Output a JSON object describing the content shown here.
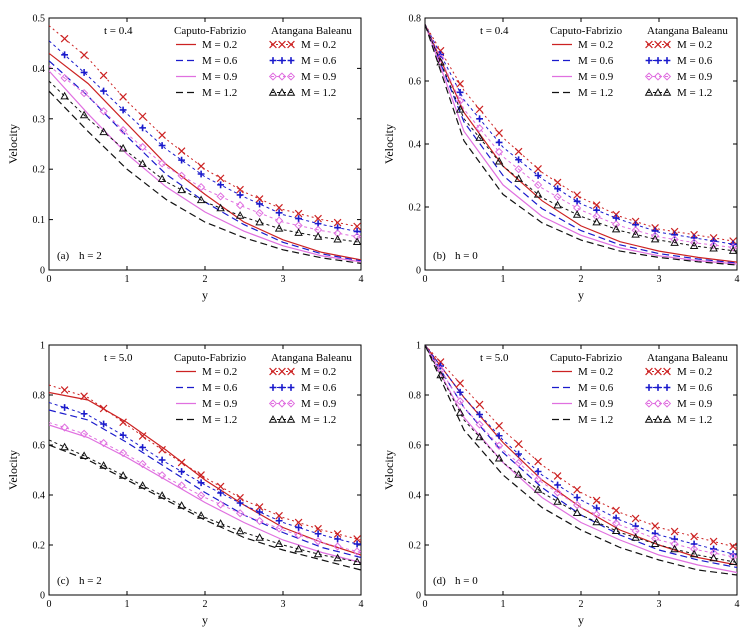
{
  "figure": {
    "ylabel": "Velocity",
    "xlabel": "y"
  },
  "legend_headers": {
    "cf": "Caputo-Fabrizio",
    "ab": "Atangana Baleanu"
  },
  "series_styles": [
    {
      "color": "#cc2222",
      "marker": "x",
      "cf_dash": "",
      "ab_dash": "2 3"
    },
    {
      "color": "#1a1acc",
      "marker": "+",
      "cf_dash": "7 4",
      "ab_dash": "3 3"
    },
    {
      "color": "#e070e0",
      "marker": "diamond",
      "cf_dash": "",
      "ab_dash": "3 3"
    },
    {
      "color": "#111111",
      "marker": "triangle",
      "cf_dash": "7 4",
      "ab_dash": "3 3"
    }
  ],
  "chart_data": [
    {
      "type": "line",
      "panel": "(a)",
      "title": "t = 0.4",
      "annotation_label": "(a)",
      "annotation_value": "h  =  2",
      "xlabel": "y",
      "ylabel": "Velocity",
      "xlim": [
        0,
        4
      ],
      "ylim": [
        0,
        0.5
      ],
      "xticks": [
        "0",
        "1",
        "2",
        "3",
        "4"
      ],
      "yticks": [
        "0",
        "0.1",
        "0.2",
        "0.3",
        "0.4",
        "0.5"
      ],
      "series": [
        {
          "name": "M = 0.2",
          "cf": {
            "x": [
              0,
              0.5,
              1,
              1.5,
              2,
              2.5,
              3,
              3.5,
              4
            ],
            "y": [
              0.43,
              0.37,
              0.29,
              0.21,
              0.15,
              0.095,
              0.06,
              0.035,
              0.02
            ]
          },
          "ab": {
            "x": [
              0,
              0.5,
              1,
              1.5,
              2,
              2.5,
              3,
              3.5,
              4
            ],
            "y": [
              0.485,
              0.42,
              0.335,
              0.26,
              0.2,
              0.155,
              0.12,
              0.1,
              0.085
            ]
          }
        },
        {
          "name": "M = 0.6",
          "cf": {
            "x": [
              0,
              0.5,
              1,
              1.5,
              2,
              2.5,
              3,
              3.5,
              4
            ],
            "y": [
              0.415,
              0.345,
              0.265,
              0.19,
              0.135,
              0.09,
              0.055,
              0.032,
              0.018
            ]
          },
          "ab": {
            "x": [
              0,
              0.5,
              1,
              1.5,
              2,
              2.5,
              3,
              3.5,
              4
            ],
            "y": [
              0.455,
              0.385,
              0.31,
              0.24,
              0.185,
              0.145,
              0.11,
              0.09,
              0.075
            ]
          }
        },
        {
          "name": "M = 0.9",
          "cf": {
            "x": [
              0,
              0.5,
              1,
              1.5,
              2,
              2.5,
              3,
              3.5,
              4
            ],
            "y": [
              0.395,
              0.31,
              0.23,
              0.165,
              0.115,
              0.077,
              0.048,
              0.028,
              0.016
            ]
          },
          "ab": {
            "x": [
              0,
              0.5,
              1,
              1.5,
              2,
              2.5,
              3,
              3.5,
              4
            ],
            "y": [
              0.405,
              0.345,
              0.27,
              0.205,
              0.16,
              0.125,
              0.095,
              0.078,
              0.065
            ]
          }
        },
        {
          "name": "M = 1.2",
          "cf": {
            "x": [
              0,
              0.5,
              1,
              1.5,
              2,
              2.5,
              3,
              3.5,
              4
            ],
            "y": [
              0.355,
              0.275,
              0.2,
              0.14,
              0.095,
              0.064,
              0.04,
              0.024,
              0.013
            ]
          },
          "ab": {
            "x": [
              0,
              0.5,
              1,
              1.5,
              2,
              2.5,
              3,
              3.5,
              4
            ],
            "y": [
              0.375,
              0.3,
              0.235,
              0.175,
              0.135,
              0.105,
              0.08,
              0.065,
              0.055
            ]
          }
        }
      ]
    },
    {
      "type": "line",
      "panel": "(b)",
      "title": "t = 0.4",
      "annotation_label": "(b)",
      "annotation_value": "h  =  0",
      "xlabel": "y",
      "ylabel": "Velocity",
      "xlim": [
        0,
        4
      ],
      "ylim": [
        0,
        0.8
      ],
      "xticks": [
        "0",
        "1",
        "2",
        "3",
        "4"
      ],
      "yticks": [
        "0",
        "0.2",
        "0.4",
        "0.6",
        "0.8"
      ],
      "series": [
        {
          "name": "M = 0.2",
          "cf": {
            "x": [
              0,
              0.5,
              1,
              1.5,
              2,
              2.5,
              3,
              3.5,
              4
            ],
            "y": [
              0.78,
              0.5,
              0.33,
              0.22,
              0.14,
              0.09,
              0.06,
              0.04,
              0.025
            ]
          },
          "ab": {
            "x": [
              0,
              0.5,
              1,
              1.5,
              2,
              2.5,
              3,
              3.5,
              4
            ],
            "y": [
              0.78,
              0.57,
              0.42,
              0.31,
              0.23,
              0.17,
              0.13,
              0.11,
              0.09
            ]
          }
        },
        {
          "name": "M = 0.6",
          "cf": {
            "x": [
              0,
              0.5,
              1,
              1.5,
              2,
              2.5,
              3,
              3.5,
              4
            ],
            "y": [
              0.78,
              0.47,
              0.3,
              0.195,
              0.125,
              0.08,
              0.052,
              0.035,
              0.022
            ]
          },
          "ab": {
            "x": [
              0,
              0.5,
              1,
              1.5,
              2,
              2.5,
              3,
              3.5,
              4
            ],
            "y": [
              0.78,
              0.54,
              0.39,
              0.29,
              0.21,
              0.16,
              0.12,
              0.1,
              0.08
            ]
          }
        },
        {
          "name": "M = 0.9",
          "cf": {
            "x": [
              0,
              0.5,
              1,
              1.5,
              2,
              2.5,
              3,
              3.5,
              4
            ],
            "y": [
              0.78,
              0.44,
              0.27,
              0.17,
              0.11,
              0.07,
              0.045,
              0.03,
              0.019
            ]
          },
          "ab": {
            "x": [
              0,
              0.5,
              1,
              1.5,
              2,
              2.5,
              3,
              3.5,
              4
            ],
            "y": [
              0.78,
              0.51,
              0.36,
              0.26,
              0.19,
              0.14,
              0.105,
              0.085,
              0.07
            ]
          }
        },
        {
          "name": "M = 1.2",
          "cf": {
            "x": [
              0,
              0.5,
              1,
              1.5,
              2,
              2.5,
              3,
              3.5,
              4
            ],
            "y": [
              0.78,
              0.41,
              0.24,
              0.15,
              0.095,
              0.06,
              0.04,
              0.026,
              0.016
            ]
          },
          "ab": {
            "x": [
              0,
              0.5,
              1,
              1.5,
              2,
              2.5,
              3,
              3.5,
              4
            ],
            "y": [
              0.78,
              0.48,
              0.33,
              0.23,
              0.17,
              0.125,
              0.095,
              0.075,
              0.06
            ]
          }
        }
      ]
    },
    {
      "type": "line",
      "panel": "(c)",
      "title": "t =  5.0",
      "annotation_label": "(c)",
      "annotation_value": "h  =  2",
      "xlabel": "y",
      "ylabel": "Velocity",
      "xlim": [
        0,
        4
      ],
      "ylim": [
        0,
        1
      ],
      "xticks": [
        "0",
        "1",
        "2",
        "3",
        "4"
      ],
      "yticks": [
        "0",
        "0.2",
        "0.4",
        "0.6",
        "0.8",
        "1"
      ],
      "series": [
        {
          "name": "M = 0.2",
          "cf": {
            "x": [
              0,
              0.5,
              1,
              1.5,
              2,
              2.5,
              3,
              3.5,
              4
            ],
            "y": [
              0.81,
              0.78,
              0.69,
              0.58,
              0.46,
              0.36,
              0.27,
              0.21,
              0.16
            ]
          },
          "ab": {
            "x": [
              0,
              0.5,
              1,
              1.5,
              2,
              2.5,
              3,
              3.5,
              4
            ],
            "y": [
              0.84,
              0.79,
              0.68,
              0.57,
              0.47,
              0.38,
              0.31,
              0.26,
              0.22
            ]
          }
        },
        {
          "name": "M = 0.6",
          "cf": {
            "x": [
              0,
              0.5,
              1,
              1.5,
              2,
              2.5,
              3,
              3.5,
              4
            ],
            "y": [
              0.74,
              0.7,
              0.61,
              0.51,
              0.41,
              0.32,
              0.25,
              0.19,
              0.15
            ]
          },
          "ab": {
            "x": [
              0,
              0.5,
              1,
              1.5,
              2,
              2.5,
              3,
              3.5,
              4
            ],
            "y": [
              0.77,
              0.72,
              0.63,
              0.53,
              0.44,
              0.36,
              0.29,
              0.24,
              0.2
            ]
          }
        },
        {
          "name": "M = 0.9",
          "cf": {
            "x": [
              0,
              0.5,
              1,
              1.5,
              2,
              2.5,
              3,
              3.5,
              4
            ],
            "y": [
              0.68,
              0.63,
              0.55,
              0.46,
              0.37,
              0.29,
              0.22,
              0.17,
              0.13
            ]
          },
          "ab": {
            "x": [
              0,
              0.5,
              1,
              1.5,
              2,
              2.5,
              3,
              3.5,
              4
            ],
            "y": [
              0.69,
              0.64,
              0.56,
              0.47,
              0.39,
              0.32,
              0.26,
              0.21,
              0.17
            ]
          }
        },
        {
          "name": "M = 1.2",
          "cf": {
            "x": [
              0,
              0.5,
              1,
              1.5,
              2,
              2.5,
              3,
              3.5,
              4
            ],
            "y": [
              0.6,
              0.54,
              0.46,
              0.38,
              0.3,
              0.23,
              0.18,
              0.14,
              0.1
            ]
          },
          "ab": {
            "x": [
              0,
              0.5,
              1,
              1.5,
              2,
              2.5,
              3,
              3.5,
              4
            ],
            "y": [
              0.62,
              0.55,
              0.47,
              0.39,
              0.31,
              0.25,
              0.2,
              0.16,
              0.13
            ]
          }
        }
      ]
    },
    {
      "type": "line",
      "panel": "(d)",
      "title": "t =  5.0",
      "annotation_label": "(d)",
      "annotation_value": "h  =  0",
      "xlabel": "y",
      "ylabel": "Velocity",
      "xlim": [
        0,
        4
      ],
      "ylim": [
        0,
        1
      ],
      "xticks": [
        "0",
        "1",
        "2",
        "3",
        "4"
      ],
      "yticks": [
        "0",
        "0.2",
        "0.4",
        "0.6",
        "0.8",
        "1"
      ],
      "series": [
        {
          "name": "M = 0.2",
          "cf": {
            "x": [
              0,
              0.5,
              1,
              1.5,
              2,
              2.5,
              3,
              3.5,
              4
            ],
            "y": [
              1,
              0.79,
              0.61,
              0.46,
              0.35,
              0.26,
              0.2,
              0.15,
              0.12
            ]
          },
          "ab": {
            "x": [
              0,
              0.5,
              1,
              1.5,
              2,
              2.5,
              3,
              3.5,
              4
            ],
            "y": [
              1,
              0.83,
              0.66,
              0.52,
              0.41,
              0.33,
              0.27,
              0.23,
              0.19
            ]
          }
        },
        {
          "name": "M = 0.6",
          "cf": {
            "x": [
              0,
              0.5,
              1,
              1.5,
              2,
              2.5,
              3,
              3.5,
              4
            ],
            "y": [
              1,
              0.75,
              0.57,
              0.43,
              0.32,
              0.24,
              0.18,
              0.14,
              0.11
            ]
          },
          "ab": {
            "x": [
              0,
              0.5,
              1,
              1.5,
              2,
              2.5,
              3,
              3.5,
              4
            ],
            "y": [
              1,
              0.79,
              0.62,
              0.48,
              0.38,
              0.3,
              0.24,
              0.2,
              0.16
            ]
          }
        },
        {
          "name": "M = 0.9",
          "cf": {
            "x": [
              0,
              0.5,
              1,
              1.5,
              2,
              2.5,
              3,
              3.5,
              4
            ],
            "y": [
              1,
              0.71,
              0.53,
              0.39,
              0.29,
              0.22,
              0.16,
              0.12,
              0.09
            ]
          },
          "ab": {
            "x": [
              0,
              0.5,
              1,
              1.5,
              2,
              2.5,
              3,
              3.5,
              4
            ],
            "y": [
              1,
              0.75,
              0.58,
              0.45,
              0.35,
              0.28,
              0.22,
              0.18,
              0.15
            ]
          }
        },
        {
          "name": "M = 1.2",
          "cf": {
            "x": [
              0,
              0.5,
              1,
              1.5,
              2,
              2.5,
              3,
              3.5,
              4
            ],
            "y": [
              1,
              0.66,
              0.48,
              0.35,
              0.26,
              0.19,
              0.14,
              0.1,
              0.08
            ]
          },
          "ab": {
            "x": [
              0,
              0.5,
              1,
              1.5,
              2,
              2.5,
              3,
              3.5,
              4
            ],
            "y": [
              1,
              0.7,
              0.53,
              0.41,
              0.32,
              0.25,
              0.2,
              0.16,
              0.13
            ]
          }
        }
      ]
    }
  ]
}
